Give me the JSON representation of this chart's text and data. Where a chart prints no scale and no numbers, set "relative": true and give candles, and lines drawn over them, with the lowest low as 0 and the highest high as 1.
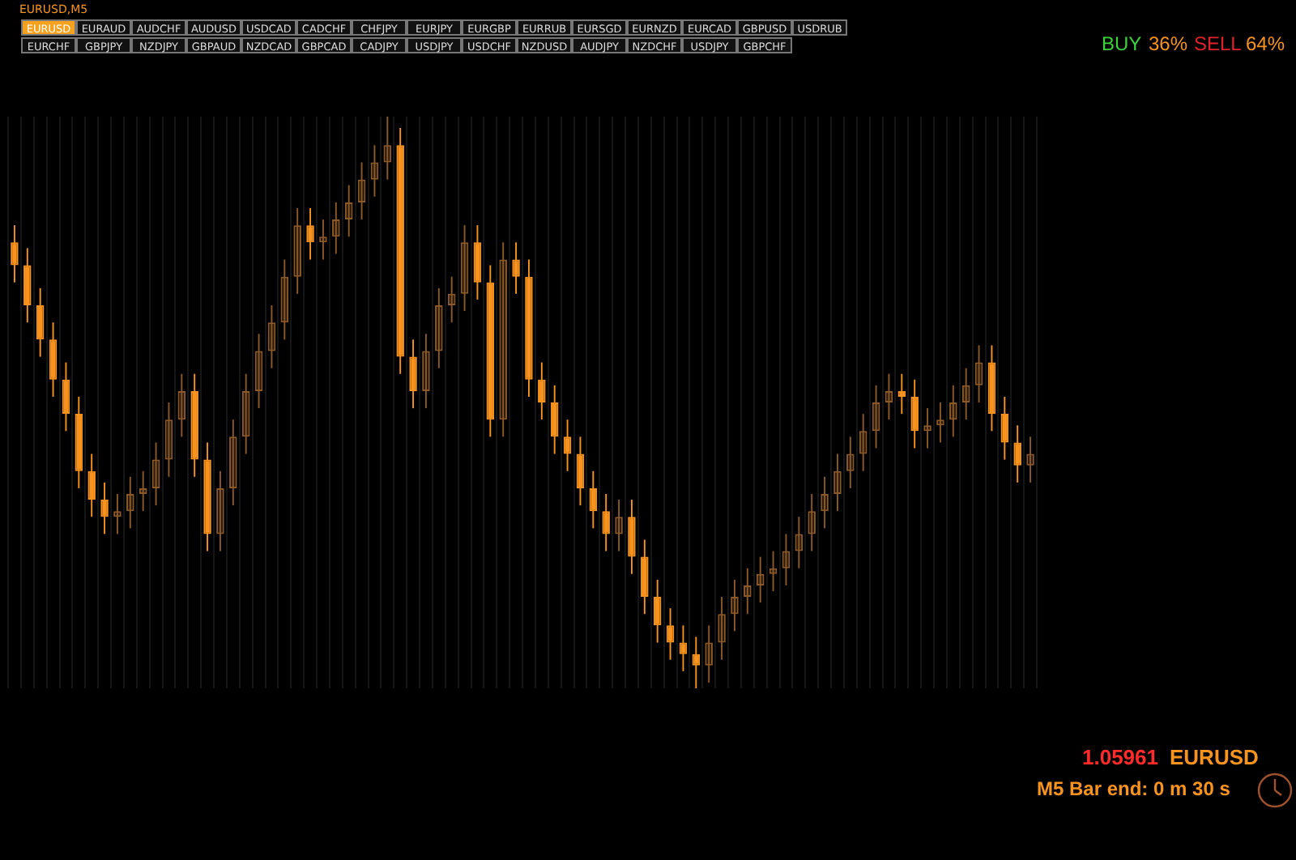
{
  "chart_data": {
    "type": "candlestick",
    "relative": true,
    "title": "EURUSD,M5",
    "colors": [
      "#f7931e",
      "#f7931e",
      "#f7931e",
      "#f7931e",
      "#f7931e",
      "#f7931e",
      "#f7931e",
      "#f7931e",
      "#8c5a28",
      "#8c5a28",
      "#8c5a28",
      "#8c5a28",
      "#8c5a28",
      "#8c5a28",
      "#f7931e",
      "#f7931e",
      "#8c5a28",
      "#8c5a28",
      "#8c5a28",
      "#8c5a28",
      "#8c5a28",
      "#8c5a28",
      "#8c5a28",
      "#f7931e",
      "#8c5a28",
      "#8c5a28",
      "#8c5a28",
      "#8c5a28",
      "#8c5a28",
      "#8c5a28",
      "#f7931e",
      "#f7931e",
      "#8c5a28",
      "#8c5a28",
      "#8c5a28",
      "#8c5a28",
      "#f7931e",
      "#f7931e",
      "#8c5a28",
      "#f7931e",
      "#f7931e",
      "#f7931e",
      "#f7931e",
      "#f7931e",
      "#f7931e",
      "#f7931e",
      "#f7931e",
      "#8c5a28",
      "#f7931e",
      "#f7931e",
      "#f7931e",
      "#f7931e",
      "#f7931e",
      "#f7931e",
      "#8c5a28",
      "#8c5a28",
      "#8c5a28",
      "#8c5a28",
      "#8c5a28",
      "#8c5a28",
      "#8c5a28",
      "#8c5a28",
      "#8c5a28",
      "#8c5a28",
      "#8c5a28",
      "#8c5a28",
      "#8c5a28",
      "#8c5a28",
      "#8c5a28",
      "#f7931e",
      "#f7931e",
      "#8c5a28",
      "#8c5a28",
      "#8c5a28",
      "#8c5a28",
      "#8c5a28",
      "#f7931e",
      "#f7931e",
      "#f7931e",
      "#8c5a28"
    ],
    "grid": true,
    "tick_labels": false,
    "categories": [
      null,
      null,
      null,
      null,
      null,
      null,
      null,
      null,
      null,
      null,
      null,
      null,
      null,
      null,
      null,
      null,
      null,
      null,
      null,
      null,
      null,
      null,
      null,
      null,
      null,
      null,
      null,
      null,
      null,
      null,
      null,
      null,
      null,
      null,
      null,
      null,
      null,
      null,
      null,
      null,
      null,
      null,
      null,
      null,
      null,
      null,
      null,
      null,
      null,
      null,
      null,
      null,
      null,
      null,
      null,
      null,
      null,
      null,
      null,
      null,
      null,
      null,
      null,
      null,
      null,
      null,
      null,
      null,
      null,
      null,
      null,
      null,
      null,
      null,
      null,
      null,
      null,
      null,
      null,
      null
    ],
    "ohlc": [
      [
        0.78,
        0.81,
        0.71,
        0.74
      ],
      [
        0.74,
        0.77,
        0.64,
        0.67
      ],
      [
        0.67,
        0.7,
        0.58,
        0.61
      ],
      [
        0.61,
        0.64,
        0.51,
        0.54
      ],
      [
        0.54,
        0.57,
        0.45,
        0.48
      ],
      [
        0.48,
        0.51,
        0.35,
        0.38
      ],
      [
        0.38,
        0.41,
        0.3,
        0.33
      ],
      [
        0.33,
        0.36,
        0.27,
        0.3
      ],
      [
        0.3,
        0.34,
        0.27,
        0.31
      ],
      [
        0.31,
        0.37,
        0.28,
        0.34
      ],
      [
        0.34,
        0.38,
        0.31,
        0.35
      ],
      [
        0.35,
        0.43,
        0.32,
        0.4
      ],
      [
        0.4,
        0.5,
        0.37,
        0.47
      ],
      [
        0.47,
        0.55,
        0.44,
        0.52
      ],
      [
        0.52,
        0.55,
        0.37,
        0.4
      ],
      [
        0.4,
        0.43,
        0.24,
        0.27
      ],
      [
        0.27,
        0.38,
        0.24,
        0.35
      ],
      [
        0.35,
        0.47,
        0.32,
        0.44
      ],
      [
        0.44,
        0.55,
        0.41,
        0.52
      ],
      [
        0.52,
        0.62,
        0.49,
        0.59
      ],
      [
        0.59,
        0.67,
        0.56,
        0.64
      ],
      [
        0.64,
        0.75,
        0.61,
        0.72
      ],
      [
        0.72,
        0.84,
        0.69,
        0.81
      ],
      [
        0.81,
        0.84,
        0.75,
        0.78
      ],
      [
        0.78,
        0.82,
        0.75,
        0.79
      ],
      [
        0.79,
        0.85,
        0.76,
        0.82
      ],
      [
        0.82,
        0.88,
        0.79,
        0.85
      ],
      [
        0.85,
        0.92,
        0.82,
        0.89
      ],
      [
        0.89,
        0.95,
        0.86,
        0.92
      ],
      [
        0.92,
        1,
        0.89,
        0.95
      ],
      [
        0.95,
        0.98,
        0.55,
        0.58
      ],
      [
        0.58,
        0.61,
        0.49,
        0.52
      ],
      [
        0.52,
        0.62,
        0.49,
        0.59
      ],
      [
        0.59,
        0.7,
        0.56,
        0.67
      ],
      [
        0.67,
        0.72,
        0.64,
        0.69
      ],
      [
        0.69,
        0.81,
        0.66,
        0.78
      ],
      [
        0.78,
        0.81,
        0.68,
        0.71
      ],
      [
        0.71,
        0.74,
        0.44,
        0.47
      ],
      [
        0.47,
        0.78,
        0.44,
        0.75
      ],
      [
        0.75,
        0.78,
        0.69,
        0.72
      ],
      [
        0.72,
        0.75,
        0.51,
        0.54
      ],
      [
        0.54,
        0.57,
        0.47,
        0.5
      ],
      [
        0.5,
        0.53,
        0.41,
        0.44
      ],
      [
        0.44,
        0.47,
        0.38,
        0.41
      ],
      [
        0.41,
        0.44,
        0.32,
        0.35
      ],
      [
        0.35,
        0.38,
        0.28,
        0.31
      ],
      [
        0.31,
        0.34,
        0.24,
        0.27
      ],
      [
        0.27,
        0.33,
        0.24,
        0.3
      ],
      [
        0.3,
        0.33,
        0.2,
        0.23
      ],
      [
        0.23,
        0.26,
        0.13,
        0.16
      ],
      [
        0.16,
        0.19,
        0.08,
        0.11
      ],
      [
        0.11,
        0.14,
        0.05,
        0.08
      ],
      [
        0.08,
        0.11,
        0.03,
        0.06
      ],
      [
        0.06,
        0.09,
        0,
        0.04
      ],
      [
        0.04,
        0.11,
        0.01,
        0.08
      ],
      [
        0.08,
        0.16,
        0.05,
        0.13
      ],
      [
        0.13,
        0.19,
        0.1,
        0.16
      ],
      [
        0.16,
        0.21,
        0.13,
        0.18
      ],
      [
        0.18,
        0.23,
        0.15,
        0.2
      ],
      [
        0.2,
        0.24,
        0.17,
        0.21
      ],
      [
        0.21,
        0.27,
        0.18,
        0.24
      ],
      [
        0.24,
        0.3,
        0.21,
        0.27
      ],
      [
        0.27,
        0.34,
        0.24,
        0.31
      ],
      [
        0.31,
        0.37,
        0.28,
        0.34
      ],
      [
        0.34,
        0.41,
        0.31,
        0.38
      ],
      [
        0.38,
        0.44,
        0.35,
        0.41
      ],
      [
        0.41,
        0.48,
        0.38,
        0.45
      ],
      [
        0.45,
        0.53,
        0.42,
        0.5
      ],
      [
        0.5,
        0.55,
        0.47,
        0.52
      ],
      [
        0.52,
        0.55,
        0.48,
        0.51
      ],
      [
        0.51,
        0.54,
        0.42,
        0.45
      ],
      [
        0.45,
        0.49,
        0.42,
        0.46
      ],
      [
        0.46,
        0.5,
        0.43,
        0.47
      ],
      [
        0.47,
        0.53,
        0.44,
        0.5
      ],
      [
        0.5,
        0.56,
        0.47,
        0.53
      ],
      [
        0.53,
        0.6,
        0.5,
        0.57
      ],
      [
        0.57,
        0.6,
        0.45,
        0.48
      ],
      [
        0.48,
        0.51,
        0.4,
        0.43
      ],
      [
        0.43,
        0.46,
        0.36,
        0.39
      ],
      [
        0.39,
        0.44,
        0.36,
        0.41
      ]
    ],
    "annotations": [
      "EURUSD",
      "EURAUD",
      "AUDCHF",
      "AUDUSD",
      "USDCAD",
      "CADCHF",
      "CHFJPY",
      "EURJPY",
      "EURGBP",
      "EURRUB",
      "EURSGD",
      "EURNZD",
      "EURCAD",
      "GBPUSD",
      "USDRUB",
      "EURCHF",
      "GBPJPY",
      "NZDJPY",
      "GBPAUD",
      "NZDCAD",
      "GBPCAD",
      "CADJPY",
      "USDJPY",
      "USDCHF",
      "NZDUSD",
      "AUDJPY",
      "NZDCHF",
      "USDJPY",
      "GBPCHF",
      "BUY",
      "36%",
      "SELL",
      "64%",
      "1.05961",
      "EURUSD",
      "M5 Bar end: 0 m 30 s"
    ]
  }
}
